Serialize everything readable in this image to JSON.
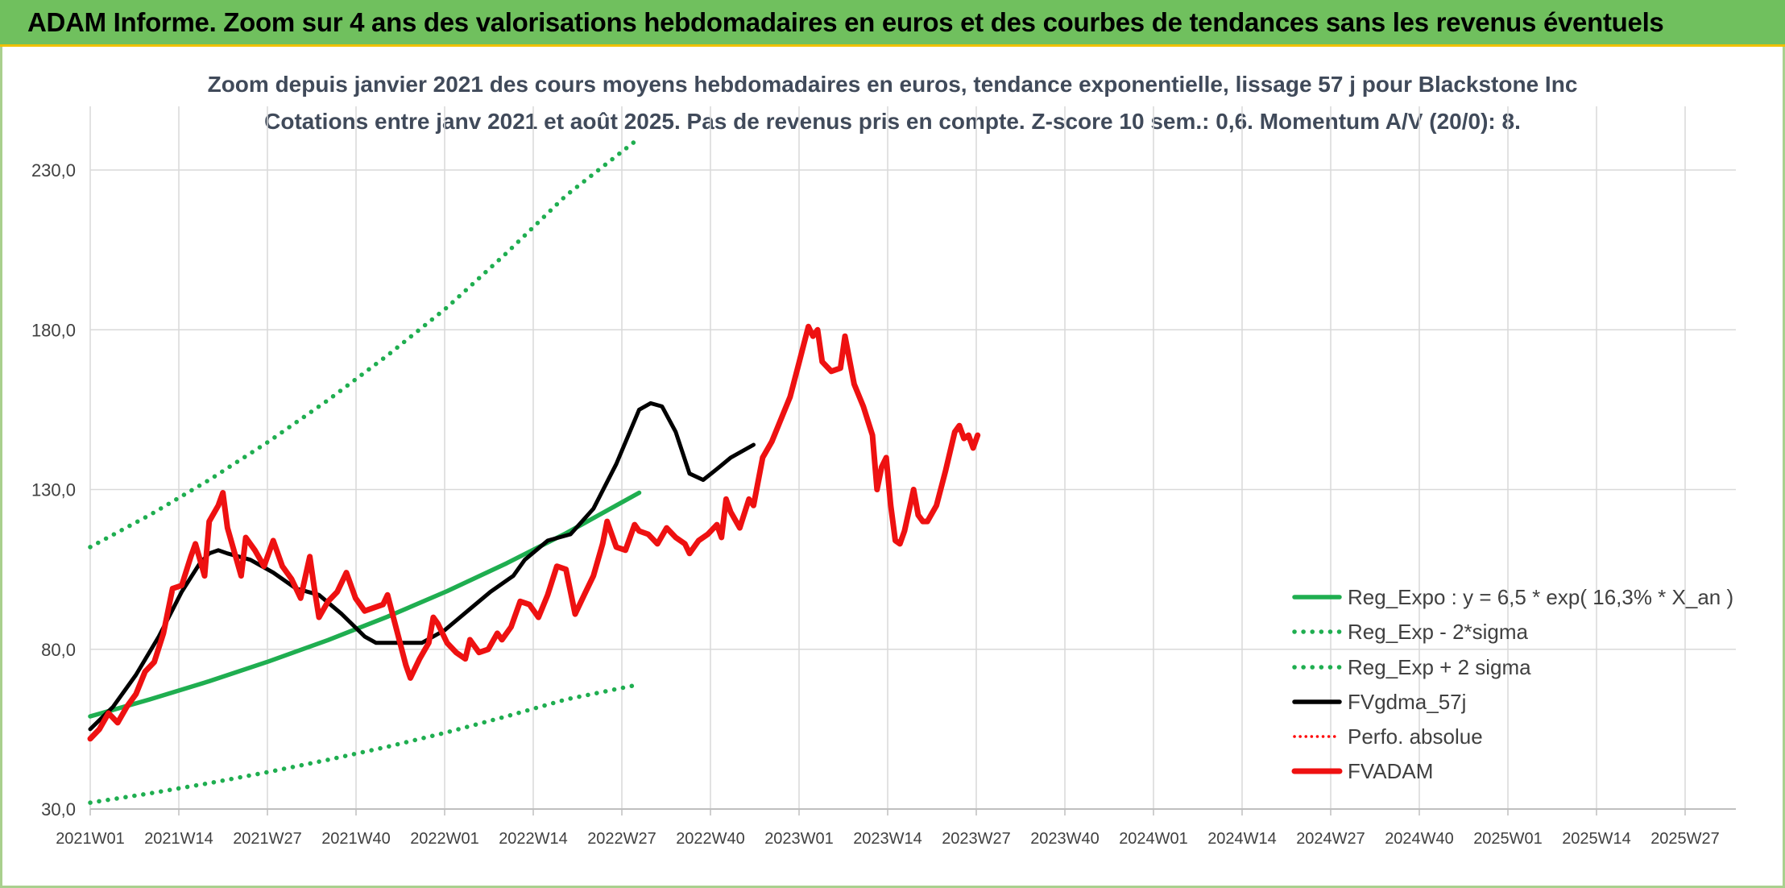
{
  "banner": {
    "title": "ADAM Informe. Zoom sur 4 ans des valorisations hebdomadaires en euros et des courbes de tendances sans les revenus éventuels"
  },
  "chart_data": {
    "type": "line",
    "title": "Zoom depuis janvier 2021 des cours moyens hebdomadaires en euros, tendance exponentielle, lissage 57 j pour Blackstone Inc",
    "subtitle": "Cotations entre janv 2021 et août 2025. Pas de revenus pris en compte. Z-score 10 sem.: 0,6. Momentum A/V (20/0): 8.",
    "xlabel": "",
    "ylabel": "",
    "ylim": [
      30,
      230
    ],
    "grid": true,
    "legend_position": "right",
    "x_ticks": [
      "2021W01",
      "2021W14",
      "2021W27",
      "2021W40",
      "2022W01",
      "2022W14",
      "2022W27",
      "2022W40",
      "2023W01",
      "2023W14",
      "2023W27",
      "2023W40",
      "2024W01",
      "2024W14",
      "2024W27",
      "2024W40",
      "2025W01",
      "2025W14",
      "2025W27"
    ],
    "y_ticks": [
      "30,0",
      "80,0",
      "130,0",
      "180,0",
      "230,0"
    ],
    "series": [
      {
        "name": "Reg_Expo : y = 6,5 * exp( 16,3% *  X_an )",
        "color": "#1fae50",
        "style": "solid",
        "points": [
          [
            0,
            59
          ],
          [
            26,
            64.3
          ],
          [
            52,
            70.0
          ],
          [
            78,
            76.2
          ],
          [
            104,
            82.9
          ],
          [
            130,
            90.2
          ],
          [
            156,
            98.2
          ],
          [
            182,
            106.9
          ],
          [
            208,
            116.3
          ],
          [
            240,
            129
          ]
        ]
      },
      {
        "name": "Reg_Exp - 2*sigma",
        "color": "#1fae50",
        "style": "dotted",
        "points": [
          [
            0,
            32
          ],
          [
            26,
            34.9
          ],
          [
            52,
            38.1
          ],
          [
            78,
            41.6
          ],
          [
            104,
            45.4
          ],
          [
            130,
            49.5
          ],
          [
            156,
            54.0
          ],
          [
            182,
            59.0
          ],
          [
            208,
            64.3
          ],
          [
            240,
            69
          ]
        ]
      },
      {
        "name": "Reg_Exp + 2 sigma",
        "color": "#1fae50",
        "style": "dotted",
        "points": [
          [
            0,
            112
          ],
          [
            26,
            122
          ],
          [
            52,
            133
          ],
          [
            78,
            145
          ],
          [
            104,
            158
          ],
          [
            130,
            172
          ],
          [
            156,
            187
          ],
          [
            182,
            204
          ],
          [
            208,
            222
          ],
          [
            240,
            240
          ]
        ]
      },
      {
        "name": "FVgdma_57j",
        "color": "#000000",
        "style": "solid",
        "points": [
          [
            0,
            55
          ],
          [
            10,
            62
          ],
          [
            20,
            72
          ],
          [
            30,
            84
          ],
          [
            40,
            98
          ],
          [
            48,
            107
          ],
          [
            52,
            110
          ],
          [
            56,
            111
          ],
          [
            60,
            110
          ],
          [
            70,
            108
          ],
          [
            80,
            104
          ],
          [
            90,
            99
          ],
          [
            100,
            97
          ],
          [
            110,
            91
          ],
          [
            120,
            84
          ],
          [
            125,
            82
          ],
          [
            135,
            82
          ],
          [
            145,
            82
          ],
          [
            155,
            86
          ],
          [
            165,
            92
          ],
          [
            175,
            98
          ],
          [
            185,
            103
          ],
          [
            190,
            108
          ],
          [
            200,
            114
          ],
          [
            210,
            116
          ],
          [
            220,
            124
          ],
          [
            230,
            138
          ],
          [
            240,
            155
          ],
          [
            245,
            157
          ],
          [
            250,
            156
          ],
          [
            256,
            148
          ],
          [
            262,
            135
          ],
          [
            268,
            133
          ],
          [
            275,
            137
          ],
          [
            280,
            140
          ],
          [
            290,
            144
          ]
        ]
      },
      {
        "name": "Perfo. absolue",
        "color": "#ff0000",
        "style": "dotted",
        "points": []
      },
      {
        "name": "FVADAM",
        "color": "#ee1111",
        "style": "solid-thick",
        "points": [
          [
            0,
            52
          ],
          [
            4,
            55
          ],
          [
            8,
            60
          ],
          [
            12,
            57
          ],
          [
            16,
            62
          ],
          [
            20,
            66
          ],
          [
            24,
            73
          ],
          [
            28,
            76
          ],
          [
            32,
            85
          ],
          [
            36,
            99
          ],
          [
            40,
            100
          ],
          [
            44,
            109
          ],
          [
            46,
            113
          ],
          [
            48,
            108
          ],
          [
            50,
            103
          ],
          [
            52,
            120
          ],
          [
            56,
            125
          ],
          [
            58,
            129
          ],
          [
            60,
            118
          ],
          [
            64,
            108
          ],
          [
            66,
            103
          ],
          [
            68,
            115
          ],
          [
            72,
            111
          ],
          [
            76,
            106
          ],
          [
            80,
            114
          ],
          [
            84,
            106
          ],
          [
            88,
            102
          ],
          [
            92,
            96
          ],
          [
            96,
            109
          ],
          [
            98,
            99
          ],
          [
            100,
            90
          ],
          [
            104,
            95
          ],
          [
            108,
            98
          ],
          [
            112,
            104
          ],
          [
            116,
            96
          ],
          [
            120,
            92
          ],
          [
            124,
            93
          ],
          [
            128,
            94
          ],
          [
            130,
            97
          ],
          [
            134,
            86
          ],
          [
            138,
            75
          ],
          [
            140,
            71
          ],
          [
            144,
            77
          ],
          [
            148,
            82
          ],
          [
            150,
            90
          ],
          [
            152,
            88
          ],
          [
            156,
            82
          ],
          [
            160,
            79
          ],
          [
            164,
            77
          ],
          [
            166,
            83
          ],
          [
            170,
            79
          ],
          [
            174,
            80
          ],
          [
            178,
            85
          ],
          [
            180,
            83
          ],
          [
            184,
            87
          ],
          [
            188,
            95
          ],
          [
            192,
            94
          ],
          [
            196,
            90
          ],
          [
            200,
            97
          ],
          [
            204,
            106
          ],
          [
            208,
            105
          ],
          [
            212,
            91
          ],
          [
            216,
            97
          ],
          [
            220,
            103
          ],
          [
            224,
            113
          ],
          [
            226,
            120
          ],
          [
            230,
            112
          ],
          [
            234,
            111
          ],
          [
            238,
            119
          ],
          [
            240,
            117
          ],
          [
            244,
            116
          ],
          [
            248,
            113
          ],
          [
            252,
            118
          ],
          [
            256,
            115
          ],
          [
            260,
            113
          ],
          [
            262,
            110
          ],
          [
            266,
            114
          ],
          [
            270,
            116
          ],
          [
            274,
            119
          ],
          [
            276,
            115
          ],
          [
            278,
            127
          ],
          [
            280,
            123
          ],
          [
            284,
            118
          ],
          [
            288,
            127
          ],
          [
            290,
            125
          ],
          [
            294,
            140
          ],
          [
            298,
            145
          ],
          [
            302,
            152
          ],
          [
            306,
            159
          ],
          [
            310,
            170
          ],
          [
            314,
            181
          ],
          [
            316,
            178
          ],
          [
            318,
            180
          ],
          [
            320,
            170
          ],
          [
            324,
            167
          ],
          [
            328,
            168
          ],
          [
            330,
            178
          ],
          [
            334,
            163
          ],
          [
            338,
            156
          ],
          [
            342,
            147
          ],
          [
            344,
            130
          ],
          [
            346,
            137
          ],
          [
            348,
            140
          ],
          [
            350,
            125
          ],
          [
            352,
            114
          ],
          [
            354,
            113
          ],
          [
            356,
            117
          ],
          [
            360,
            130
          ],
          [
            362,
            122
          ],
          [
            364,
            120
          ],
          [
            366,
            120
          ],
          [
            370,
            125
          ],
          [
            374,
            136
          ],
          [
            378,
            148
          ],
          [
            380,
            150
          ],
          [
            382,
            146
          ],
          [
            384,
            147
          ],
          [
            386,
            143
          ],
          [
            388,
            147
          ]
        ]
      }
    ]
  }
}
